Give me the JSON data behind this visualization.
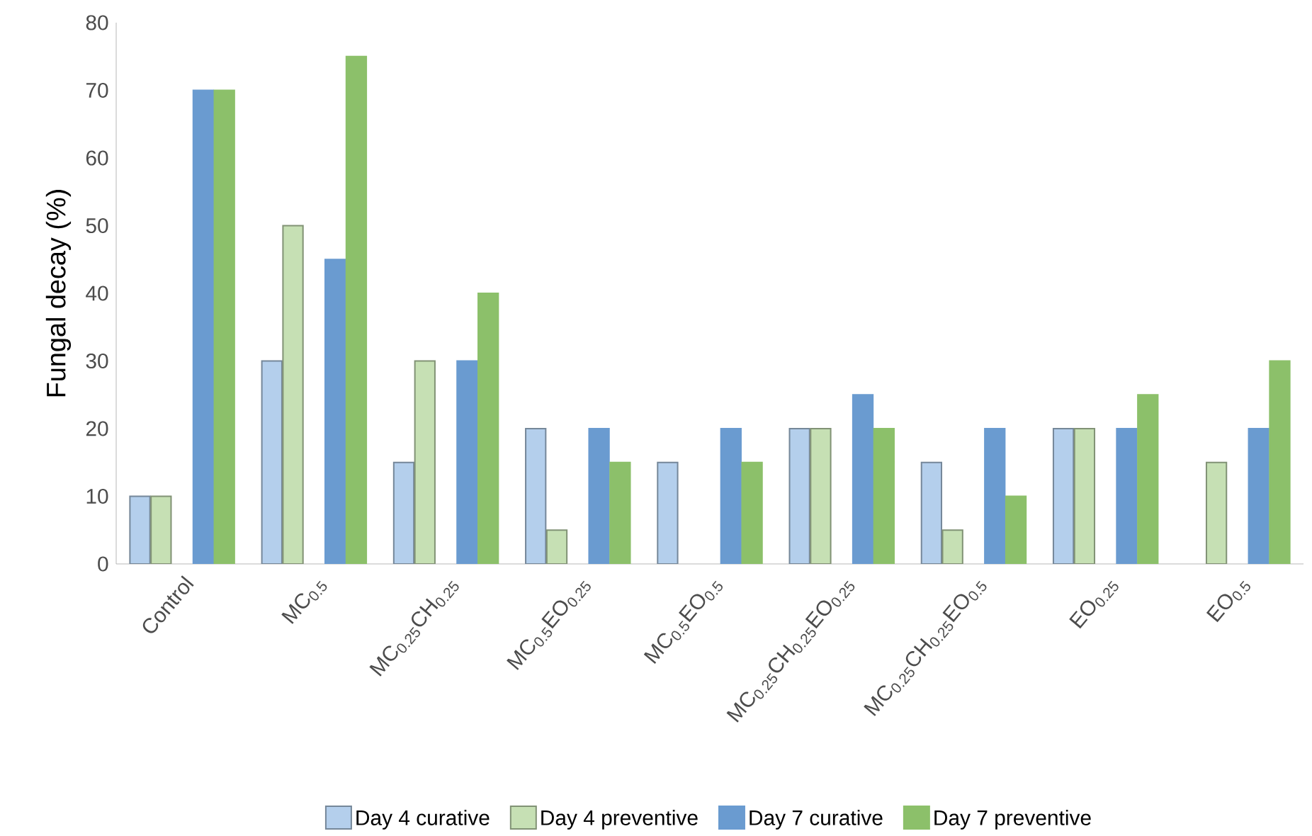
{
  "chart_data": {
    "type": "bar",
    "ylabel": "Fungal decay (%)",
    "categories": [
      "Control",
      "MC$_{0.5}$",
      "MC$_{0.25}$CH$_{0.25}$",
      "MC$_{0.5}$EO$_{0.25}$",
      "MC$_{0.5}$EO$_{0.5}$",
      "MC$_{0.25}$CH$_{0.25}$EO$_{0.25}$",
      "MC$_{0.25}$CH$_{0.25}$EO$_{0.5}$",
      "EO$_{0.25}$",
      "EO$_{0.5}$"
    ],
    "series": [
      {
        "name": "Day 4 curative",
        "color": "#b4cfec",
        "values": [
          10,
          30,
          15,
          20,
          15,
          20,
          15,
          20,
          null
        ]
      },
      {
        "name": "Day 4 preventive",
        "color": "#c6e0b4",
        "values": [
          10,
          50,
          30,
          5,
          null,
          20,
          5,
          20,
          15
        ]
      },
      {
        "name": "Day 7 curative",
        "color": "#6a9bd0",
        "values": [
          70,
          45,
          30,
          20,
          20,
          25,
          20,
          20,
          20
        ]
      },
      {
        "name": "Day 7 preventive",
        "color": "#8cc06a",
        "values": [
          70,
          75,
          40,
          15,
          15,
          20,
          10,
          25,
          30
        ]
      }
    ],
    "ylim": [
      0,
      80
    ],
    "yticks": [
      0,
      10,
      20,
      30,
      40,
      50,
      60,
      70,
      80
    ],
    "legend": "bottom",
    "grid": false
  }
}
